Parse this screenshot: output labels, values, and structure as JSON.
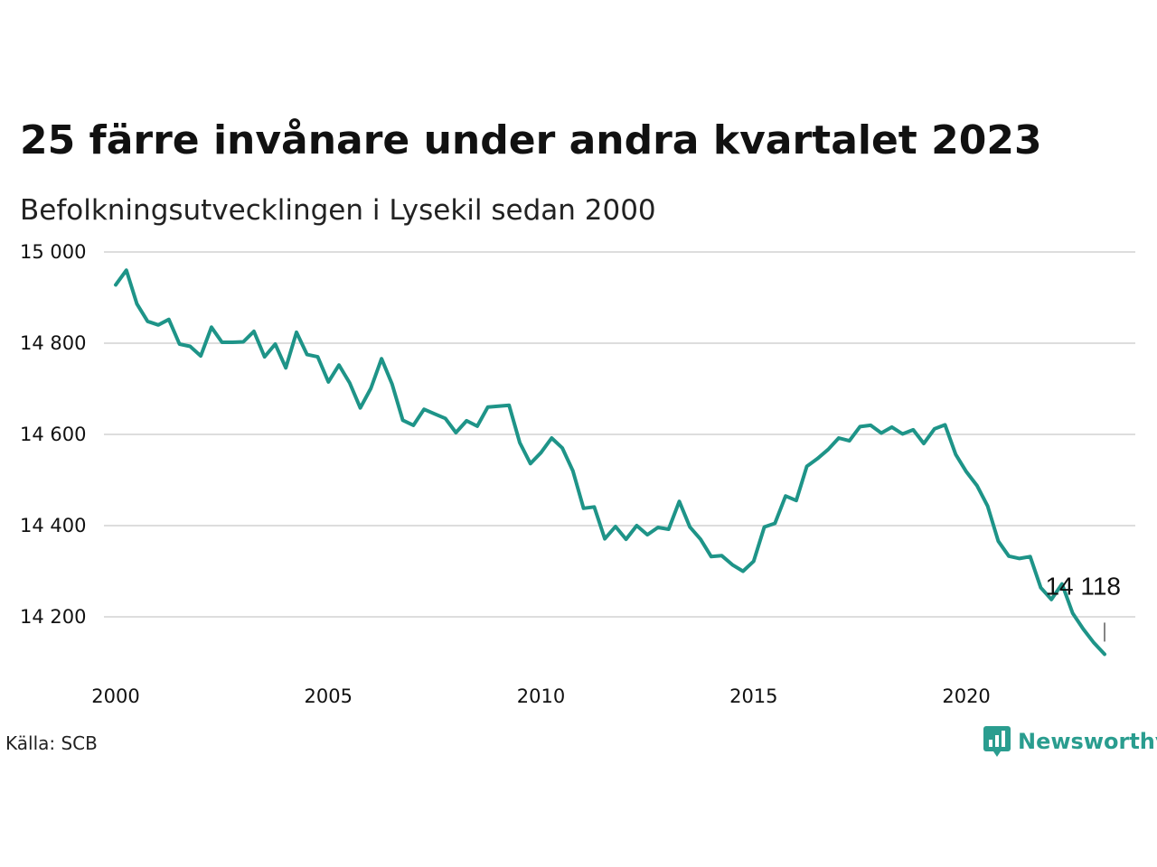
{
  "title": "25 färre invånare under andra kvartalet 2023",
  "subtitle": "Befolkningsutvecklingen i Lysekil sedan 2000",
  "source": "Källa: SCB",
  "brand": {
    "name": "Newsworthy",
    "icon": "newsworthy-logo-icon",
    "color": "#2a9d8f"
  },
  "colors": {
    "line": "#1e9488",
    "grid": "#dddddd",
    "text": "#111111"
  },
  "chart_data": {
    "type": "line",
    "title": "25 färre invånare under andra kvartalet 2023",
    "subtitle": "Befolkningsutvecklingen i Lysekil sedan 2000",
    "xlabel": "",
    "ylabel": "",
    "x_ticks": [
      2000,
      2005,
      2010,
      2015,
      2020
    ],
    "x_tick_labels": [
      "2000",
      "2005",
      "2010",
      "2015",
      "2020"
    ],
    "y_ticks": [
      14200,
      14400,
      14600,
      14800,
      15000
    ],
    "y_tick_labels": [
      "14 200",
      "14 400",
      "14 600",
      "14 800",
      "15 000"
    ],
    "xlim": [
      2000,
      2023.25
    ],
    "ylim": [
      14110,
      15000
    ],
    "grid": true,
    "last_label": "14 118",
    "series": [
      {
        "x": [
          2000.0,
          2000.25,
          2000.5,
          2000.75,
          2001.0,
          2001.25,
          2001.5,
          2001.75,
          2002.0,
          2002.25,
          2002.5,
          2002.75,
          2003.0,
          2003.25,
          2003.5,
          2003.75,
          2004.0,
          2004.25,
          2004.5,
          2004.75,
          2005.0,
          2005.25,
          2005.5,
          2005.75,
          2006.0,
          2006.25,
          2006.5,
          2006.75,
          2007.0,
          2007.25,
          2007.5,
          2007.75,
          2008.0,
          2008.25,
          2008.5,
          2008.75,
          2009.0,
          2009.25,
          2009.5,
          2009.75,
          2010.0,
          2010.25,
          2010.5,
          2010.75,
          2011.0,
          2011.25,
          2011.5,
          2011.75,
          2012.0,
          2012.25,
          2012.5,
          2012.75,
          2013.0,
          2013.25,
          2013.5,
          2013.75,
          2014.0,
          2014.25,
          2014.5,
          2014.75,
          2015.0,
          2015.25,
          2015.5,
          2015.75,
          2016.0,
          2016.25,
          2016.5,
          2016.75,
          2017.0,
          2017.25,
          2017.5,
          2017.75,
          2018.0,
          2018.25,
          2018.5,
          2018.75,
          2019.0,
          2019.25,
          2019.5,
          2019.75,
          2020.0,
          2020.25,
          2020.5,
          2020.75,
          2021.0,
          2021.25,
          2021.5,
          2021.75,
          2022.0,
          2022.25,
          2022.5,
          2022.75,
          2023.0,
          2023.25
        ],
        "values": [
          14928,
          14960,
          14886,
          14848,
          14840,
          14852,
          14798,
          14793,
          14772,
          14835,
          14802,
          14802,
          14803,
          14826,
          14770,
          14798,
          14746,
          14824,
          14775,
          14770,
          14715,
          14752,
          14713,
          14658,
          14701,
          14766,
          14710,
          14631,
          14620,
          14655,
          14645,
          14635,
          14604,
          14630,
          14618,
          14660,
          14662,
          14664,
          14582,
          14536,
          14560,
          14592,
          14570,
          14520,
          14438,
          14441,
          14371,
          14398,
          14370,
          14400,
          14380,
          14396,
          14392,
          14453,
          14397,
          14370,
          14332,
          14334,
          14314,
          14300,
          14322,
          14397,
          14405,
          14465,
          14455,
          14530,
          14547,
          14567,
          14592,
          14586,
          14617,
          14620,
          14603,
          14616,
          14601,
          14610,
          14580,
          14612,
          14621,
          14556,
          14518,
          14488,
          14443,
          14366,
          14333,
          14328,
          14332,
          14264,
          14238,
          14272,
          14208,
          14173,
          14143,
          14118
        ]
      }
    ]
  }
}
